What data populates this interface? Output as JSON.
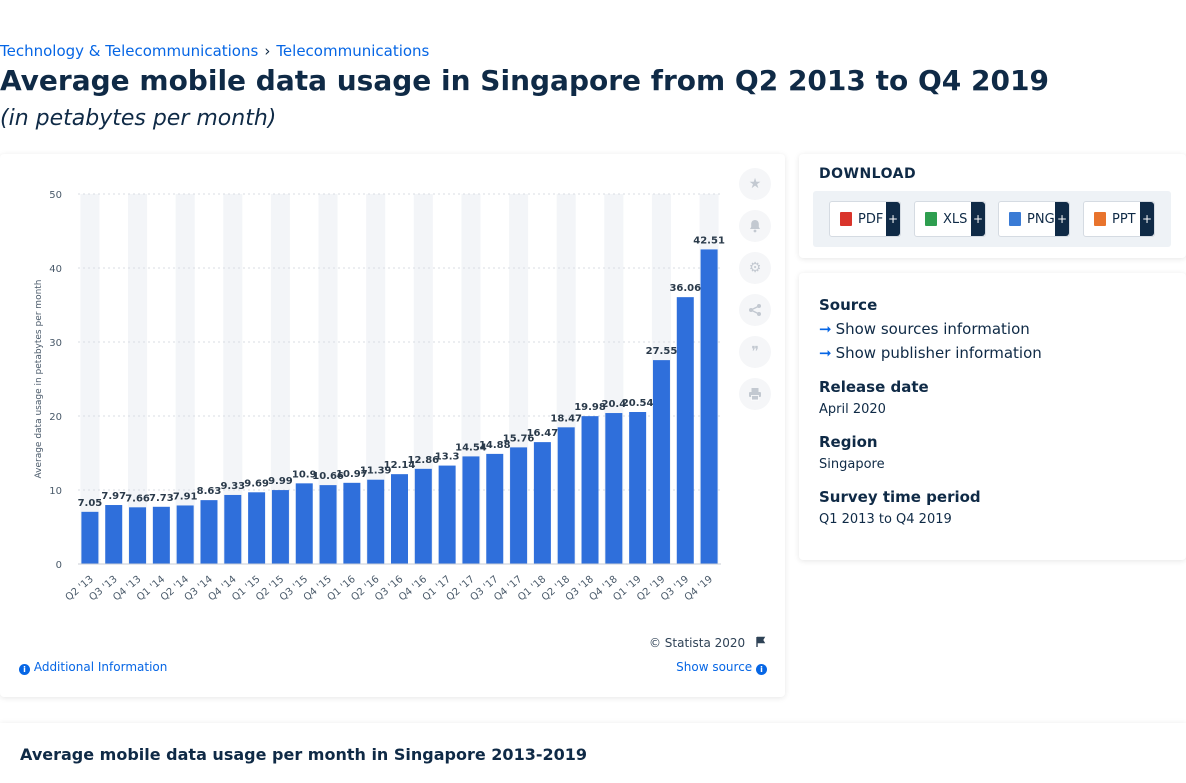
{
  "breadcrumb": {
    "item1": "Technology & Telecommunications",
    "separator": "›",
    "item2": "Telecommunications"
  },
  "page": {
    "title": "Average mobile data usage in Singapore from Q2 2013 to Q4 2019",
    "subtitle": "(in petabytes per month)"
  },
  "chart_data": {
    "type": "bar",
    "categories": [
      "Q2 '13",
      "Q3 '13",
      "Q4 '13",
      "Q1 '14",
      "Q2 '14",
      "Q3 '14",
      "Q4 '14",
      "Q1 '15",
      "Q2 '15",
      "Q3 '15",
      "Q4 '15",
      "Q1 '16",
      "Q2 '16",
      "Q3 '16",
      "Q4 '16",
      "Q1 '17",
      "Q2 '17",
      "Q3 '17",
      "Q4 '17",
      "Q1 '18",
      "Q2 '18",
      "Q3 '18",
      "Q4 '18",
      "Q1 '19",
      "Q2 '19",
      "Q3 '19",
      "Q4 '19"
    ],
    "values": [
      7.05,
      7.97,
      7.66,
      7.73,
      7.91,
      8.63,
      9.33,
      9.69,
      9.99,
      10.9,
      10.66,
      10.97,
      11.39,
      12.14,
      12.86,
      13.3,
      14.54,
      14.88,
      15.76,
      16.47,
      18.47,
      19.98,
      20.4,
      20.54,
      27.55,
      36.06,
      42.51
    ],
    "data_labels": [
      "7.05",
      "7.97",
      "7.66",
      "7.73",
      "7.91",
      "8.63",
      "9.33",
      "9.69",
      "9.99",
      "10.9",
      "10.66",
      "10.97",
      "11.39",
      "12.14",
      "12.86",
      "13.3",
      "14.54",
      "14.88",
      "15.76",
      "16.47",
      "18.47",
      "19.98",
      "20.4",
      "20.54",
      "27.55",
      "36.06",
      "42.51"
    ],
    "ylabel": "Average data usage in petabytes per month",
    "xlabel": "",
    "ylim": [
      0,
      50
    ],
    "yticks": [
      0,
      10,
      20,
      30,
      40,
      50
    ],
    "bar_color": "#2f6fdb",
    "band_color": "#f3f5f8",
    "grid": true
  },
  "chart_footer": {
    "copyright": "© Statista 2020",
    "additional_info": "Additional Information",
    "show_source": "Show source"
  },
  "tools": {
    "icons": [
      "star-icon",
      "bell-icon",
      "gear-icon",
      "share-icon",
      "quote-icon",
      "print-icon"
    ]
  },
  "download": {
    "title": "DOWNLOAD",
    "buttons": [
      {
        "label": "PDF",
        "color": "#d9342b"
      },
      {
        "label": "XLS",
        "color": "#2e9e4f"
      },
      {
        "label": "PNG",
        "color": "#3a7bd5"
      },
      {
        "label": "PPT",
        "color": "#e8732c"
      }
    ],
    "plus": "+"
  },
  "info": {
    "source_head": "Source",
    "show_sources": "Show sources information",
    "show_publisher": "Show publisher information",
    "release_head": "Release date",
    "release_val": "April 2020",
    "region_head": "Region",
    "region_val": "Singapore",
    "period_head": "Survey time period",
    "period_val": "Q1 2013 to Q4 2019"
  },
  "bottom": {
    "title": "Average mobile data usage per month in Singapore 2013-2019"
  }
}
